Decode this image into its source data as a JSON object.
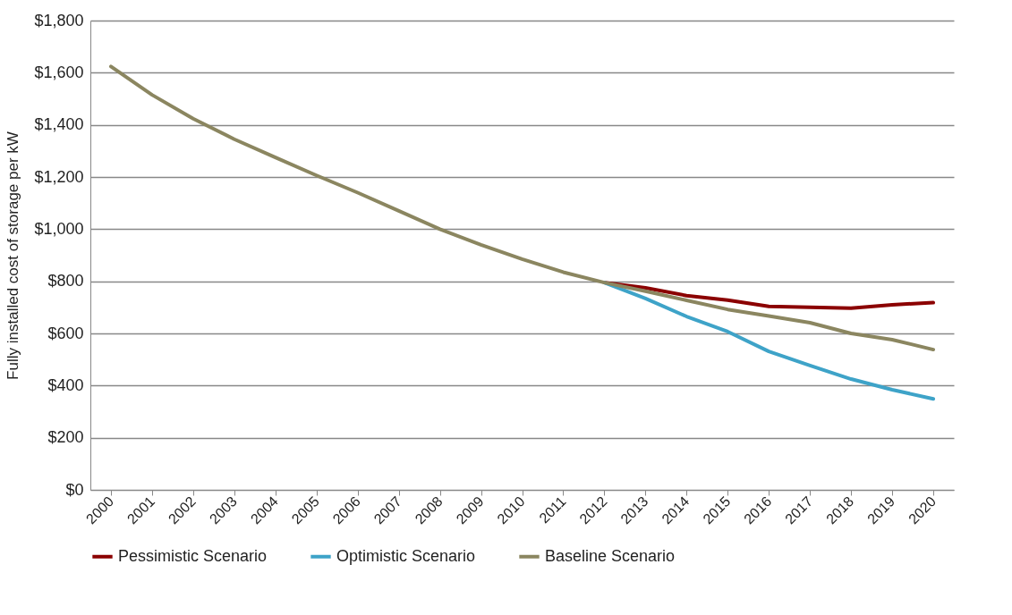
{
  "chart_data": {
    "type": "line",
    "ylabel": "Fully installed cost of storage per kW",
    "categories": [
      "2000",
      "2001",
      "2002",
      "2003",
      "2004",
      "2005",
      "2006",
      "2007",
      "2008",
      "2009",
      "2010",
      "2011",
      "2012",
      "2013",
      "2014",
      "2015",
      "2016",
      "2017",
      "2018",
      "2019",
      "2020"
    ],
    "series": [
      {
        "name": "Pessimistic Scenario",
        "color": "#8b0000",
        "values": [
          null,
          null,
          null,
          null,
          null,
          null,
          null,
          null,
          null,
          null,
          null,
          null,
          795,
          775,
          745,
          728,
          704,
          700,
          697,
          710,
          718
        ]
      },
      {
        "name": "Optimistic Scenario",
        "color": "#3ea3c8",
        "values": [
          null,
          null,
          null,
          null,
          null,
          null,
          null,
          null,
          null,
          null,
          null,
          null,
          795,
          734,
          665,
          607,
          531,
          477,
          425,
          384,
          349
        ]
      },
      {
        "name": "Baseline Scenario",
        "color": "#8b8660",
        "values": [
          1624,
          1515,
          1424,
          1345,
          1275,
          1206,
          1140,
          1070,
          1000,
          940,
          885,
          835,
          795,
          762,
          727,
          692,
          667,
          641,
          600,
          576,
          538
        ]
      }
    ],
    "ylim": [
      0,
      1800
    ],
    "yticks": [
      {
        "value": 0,
        "label": "$0"
      },
      {
        "value": 200,
        "label": "$200"
      },
      {
        "value": 400,
        "label": "$400"
      },
      {
        "value": 600,
        "label": "$600"
      },
      {
        "value": 800,
        "label": "$800"
      },
      {
        "value": 1000,
        "label": "$1,000"
      },
      {
        "value": 1200,
        "label": "$1,200"
      },
      {
        "value": 1400,
        "label": "$1,400"
      },
      {
        "value": 1600,
        "label": "$1,600"
      },
      {
        "value": 1800,
        "label": "$1,800"
      }
    ],
    "grid": "y",
    "legend": "bottom",
    "marker": "none",
    "line_style": "solid"
  }
}
